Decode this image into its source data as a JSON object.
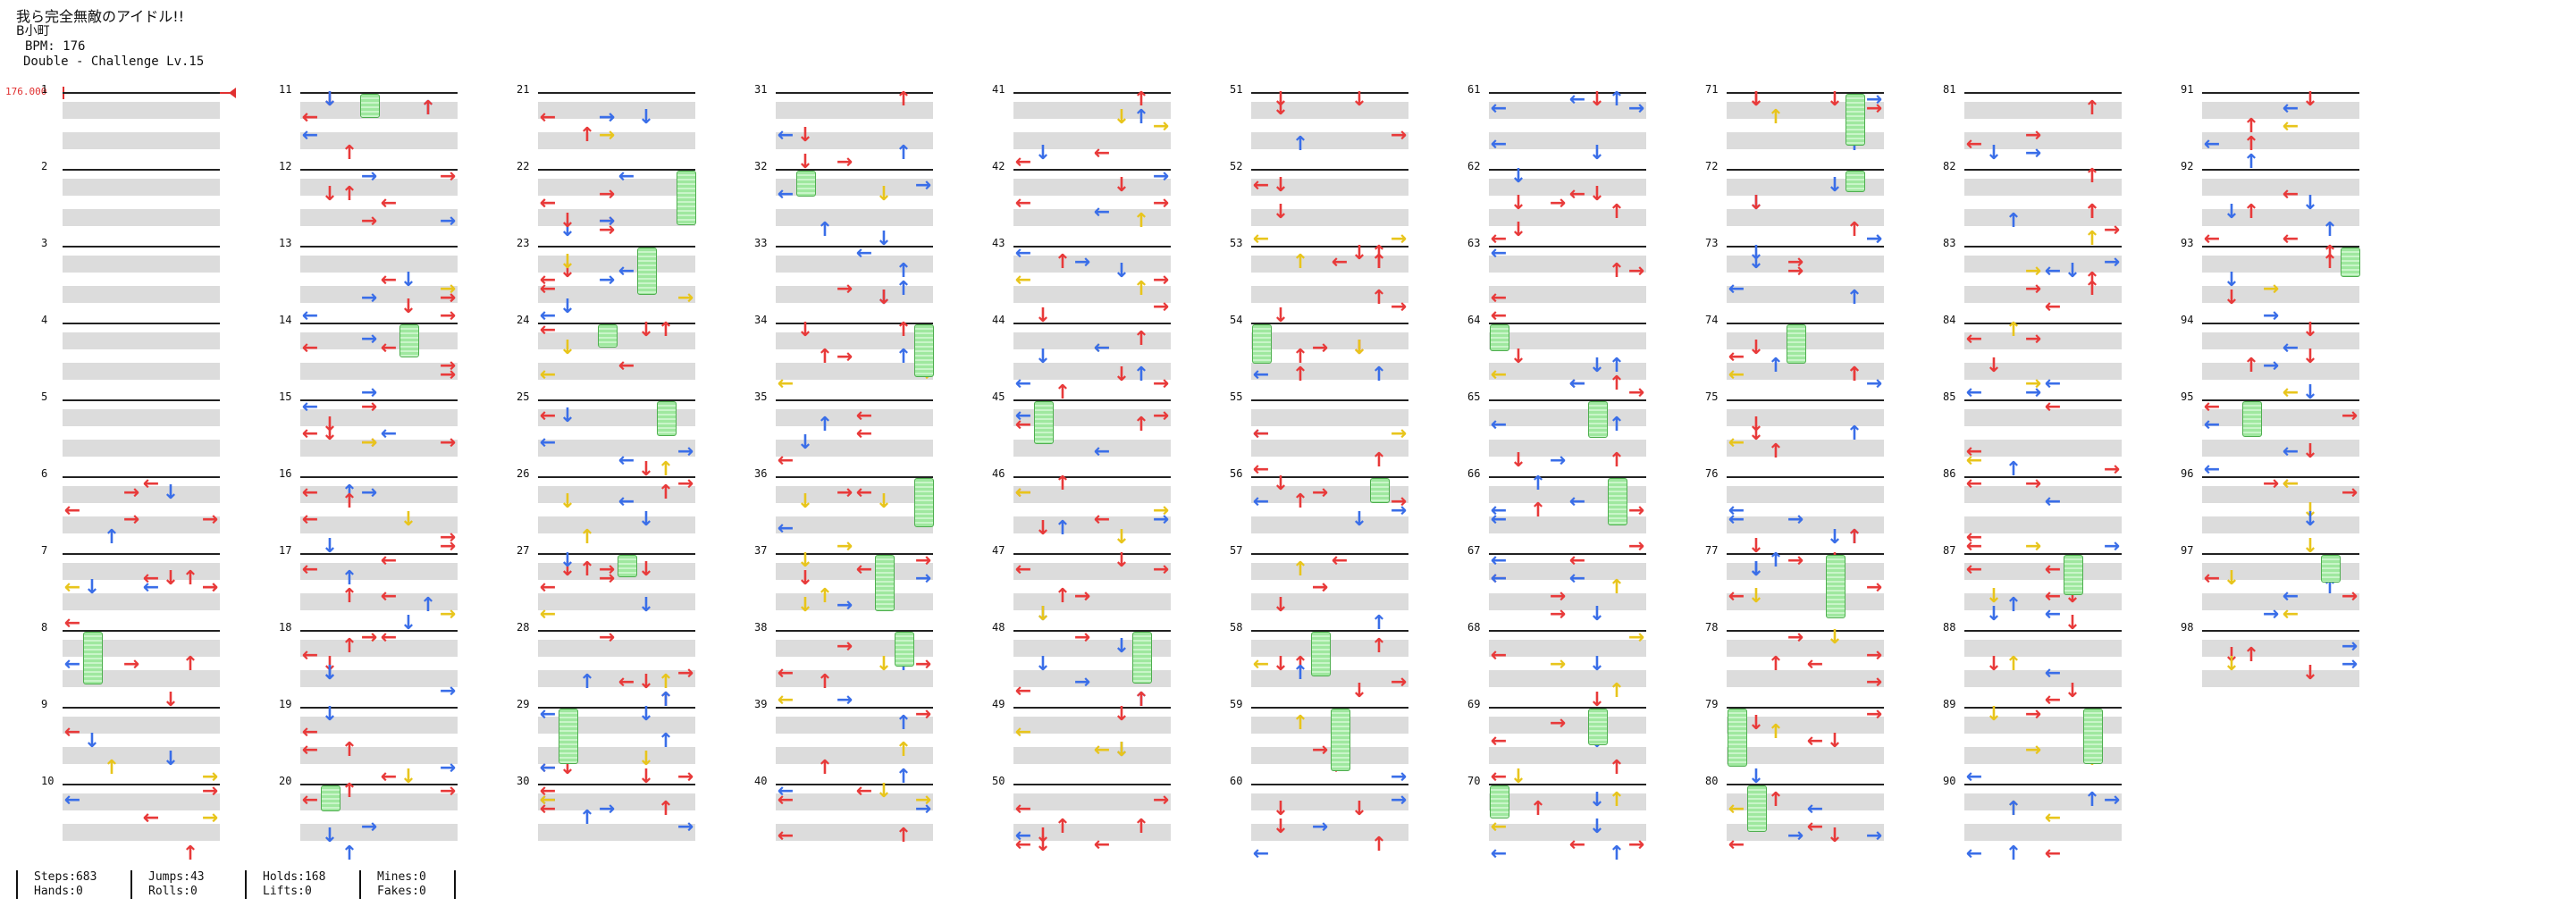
{
  "song": {
    "title": "我ら完全無敵のアイドル!!",
    "artist": "B小町",
    "bpm_label": "BPM: 176",
    "chart_label": "Double - Challenge  Lv.15"
  },
  "bpm_marker": "176.000",
  "measures_total": 98,
  "columns": [
    {
      "start": 1
    },
    {
      "start": 11
    },
    {
      "start": 21
    },
    {
      "start": 31
    },
    {
      "start": 41
    },
    {
      "start": 51
    },
    {
      "start": 61
    },
    {
      "start": 71
    },
    {
      "start": 81
    },
    {
      "start": 91
    }
  ],
  "stats": [
    {
      "a": "Steps:683",
      "b": "Hands:0"
    },
    {
      "a": "Jumps:43",
      "b": "Rolls:0"
    },
    {
      "a": "Holds:168",
      "b": "Lifts:0"
    },
    {
      "a": "Mines:0",
      "b": "Fakes:0"
    }
  ],
  "colors": {
    "quarter": "#e83a3a",
    "eighth": "#3a6ee8",
    "sixteenth": "#e8c51c",
    "hold": "#9fe89f"
  }
}
